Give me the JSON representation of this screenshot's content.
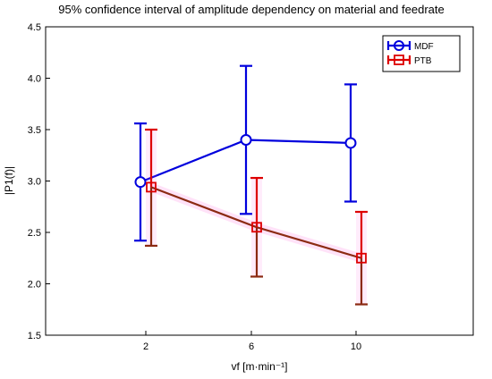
{
  "chart_data": {
    "type": "line",
    "title": "95% confidence interval of amplitude dependency on material and feedrate",
    "xlabel": "vf [m·min⁻¹]",
    "ylabel": "|P1(f)|",
    "categories": [
      "2",
      "6",
      "10"
    ],
    "ylim": [
      1.5,
      4.5
    ],
    "yticks": [
      "1.5",
      "2.0",
      "2.5",
      "3.0",
      "3.5",
      "4.0",
      "4.5"
    ],
    "grid": false,
    "legend_position": "top-right",
    "series": [
      {
        "name": "MDF",
        "color": "#0000dd",
        "marker": "circle",
        "mean": [
          2.99,
          3.4,
          3.37
        ],
        "lower": [
          2.42,
          2.68,
          2.8
        ],
        "upper": [
          3.56,
          4.12,
          3.94
        ]
      },
      {
        "name": "PTB",
        "color": "#dd0000",
        "line_color": "#8b2a12",
        "marker": "square",
        "mean": [
          2.94,
          2.55,
          2.25
        ],
        "lower": [
          2.37,
          2.07,
          1.8
        ],
        "upper": [
          3.5,
          3.03,
          2.7
        ]
      }
    ]
  }
}
